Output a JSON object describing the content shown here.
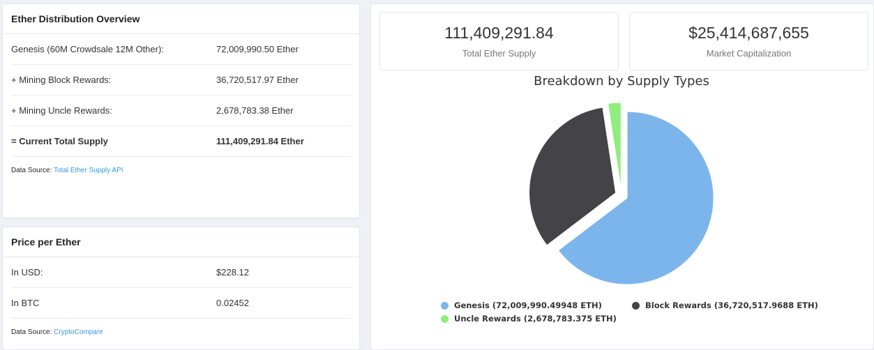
{
  "distribution": {
    "title": "Ether Distribution Overview",
    "rows": [
      {
        "label": "Genesis (60M Crowdsale 12M Other):",
        "value": "72,009,990.50 Ether"
      },
      {
        "label": "+ Mining Block Rewards:",
        "value": "36,720,517.97 Ether"
      },
      {
        "label": "+ Mining Uncle Rewards:",
        "value": "2,678,783.38 Ether"
      },
      {
        "label": "= Current Total Supply",
        "value": "111,409,291.84 Ether"
      }
    ],
    "source_prefix": "Data Source:",
    "source_link": "Total Ether Supply API"
  },
  "price": {
    "title": "Price per Ether",
    "rows": [
      {
        "label": "In USD:",
        "value": "$228.12"
      },
      {
        "label": "In BTC",
        "value": "0.02452"
      }
    ],
    "source_prefix": "Data Source:",
    "source_link": "CryptoCompare"
  },
  "stats": {
    "supply_value": "111,409,291.84",
    "supply_label": "Total Ether Supply",
    "cap_value": "$25,414,687,655",
    "cap_label": "Market Capitalization"
  },
  "chart_data": {
    "type": "pie",
    "title": "Breakdown by Supply Types",
    "series": [
      {
        "name": "Genesis (72,009,990.49948 ETH)",
        "value": 72009990.49948,
        "color": "#7cb5ec"
      },
      {
        "name": "Block Rewards (36,720,517.9688 ETH)",
        "value": 36720517.9688,
        "color": "#434348"
      },
      {
        "name": "Uncle Rewards (2,678,783.375 ETH)",
        "value": 2678783.375,
        "color": "#90ed7d"
      }
    ],
    "legend_position": "bottom"
  }
}
